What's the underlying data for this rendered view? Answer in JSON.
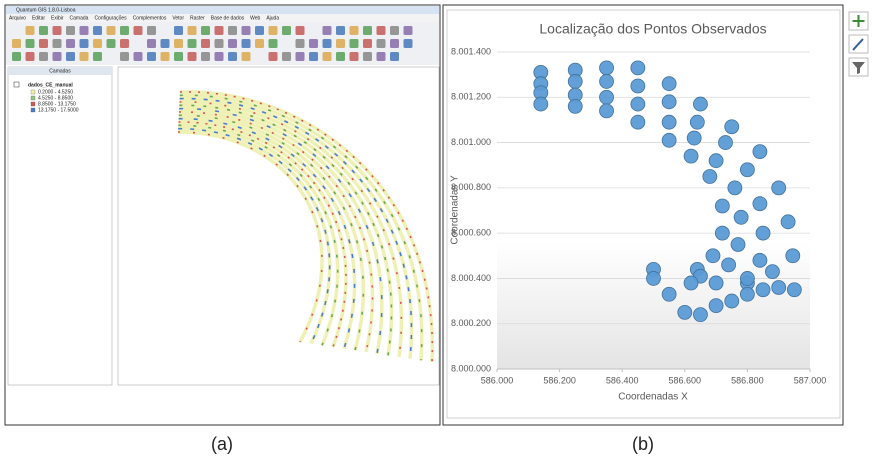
{
  "panel_a": {
    "window_title": "Quantum GIS 1.8.0-Lisboa",
    "menu": [
      "Arquivo",
      "Editar",
      "Exibir",
      "Camada",
      "Configurações",
      "Complementos",
      "Vetor",
      "Raster",
      "Base de dados",
      "Web",
      "Ajuda"
    ],
    "layers_title": "Camadas",
    "layer_name": "dados_CE_manual",
    "legend": [
      "0.2000 - 4.5250",
      "4.5250 - 8.8500",
      "8.8500 - 13.1750",
      "13.1750 - 17.5000"
    ]
  },
  "chart_data": {
    "type": "scatter",
    "title": "Localização dos Pontos Observados",
    "x_label": "Coordenadas X",
    "y_label": "Coordenadas Y",
    "color": "#5b9bd5",
    "x": [
      586140,
      586140,
      586140,
      586140,
      586250,
      586250,
      586250,
      586250,
      586350,
      586350,
      586350,
      586350,
      586450,
      586450,
      586450,
      586450,
      586550,
      586550,
      586550,
      586550,
      586650,
      586640,
      586630,
      586620,
      586750,
      586730,
      586700,
      586680,
      586840,
      586800,
      586760,
      586720,
      586900,
      586840,
      586780,
      586720,
      586930,
      586850,
      586770,
      586690,
      586945,
      586840,
      586740,
      586640,
      586950,
      586800,
      586650,
      586500,
      586500,
      586550,
      586600,
      586650,
      586700,
      586750,
      586800,
      586850,
      586900,
      586620,
      586700,
      586800,
      586880
    ],
    "values": [
      8001310,
      8001260,
      8001220,
      8001170,
      8001320,
      8001270,
      8001210,
      8001160,
      8001330,
      8001270,
      8001200,
      8001140,
      8001330,
      8001250,
      8001170,
      8001090,
      8001260,
      8001180,
      8001090,
      8001010,
      8001170,
      8001090,
      8001020,
      8000940,
      8001070,
      8001000,
      8000920,
      8000850,
      8000960,
      8000880,
      8000800,
      8000720,
      8000800,
      8000730,
      8000670,
      8000600,
      8000650,
      8000600,
      8000550,
      8000500,
      8000500,
      8000480,
      8000460,
      8000440,
      8000350,
      8000380,
      8000410,
      8000440,
      8000400,
      8000330,
      8000250,
      8000240,
      8000280,
      8000300,
      8000330,
      8000350,
      8000360,
      8000380,
      8000380,
      8000400,
      8000430
    ],
    "xlim": [
      586000,
      587000
    ],
    "xticks": [
      {
        "value": 586000,
        "label": "586.000"
      },
      {
        "value": 586200,
        "label": "586.200"
      },
      {
        "value": 586400,
        "label": "586.400"
      },
      {
        "value": 586600,
        "label": "586.600"
      },
      {
        "value": 586800,
        "label": "586.800"
      },
      {
        "value": 587000,
        "label": "587.000"
      }
    ],
    "ylim": [
      8000000,
      8001400
    ],
    "yticks": [
      {
        "value": 8000000,
        "label": "8.000.000"
      },
      {
        "value": 8000200,
        "label": "8.000.200"
      },
      {
        "value": 8000400,
        "label": "8.000.400"
      },
      {
        "value": 8000600,
        "label": "8.000.600"
      },
      {
        "value": 8000800,
        "label": "8.000.800"
      },
      {
        "value": 8001000,
        "label": "8.001.000"
      },
      {
        "value": 8001200,
        "label": "8.001.200"
      },
      {
        "value": 8001400,
        "label": "8.001.400"
      }
    ],
    "grid": true
  },
  "captions": [
    "(a)",
    "(b)"
  ]
}
